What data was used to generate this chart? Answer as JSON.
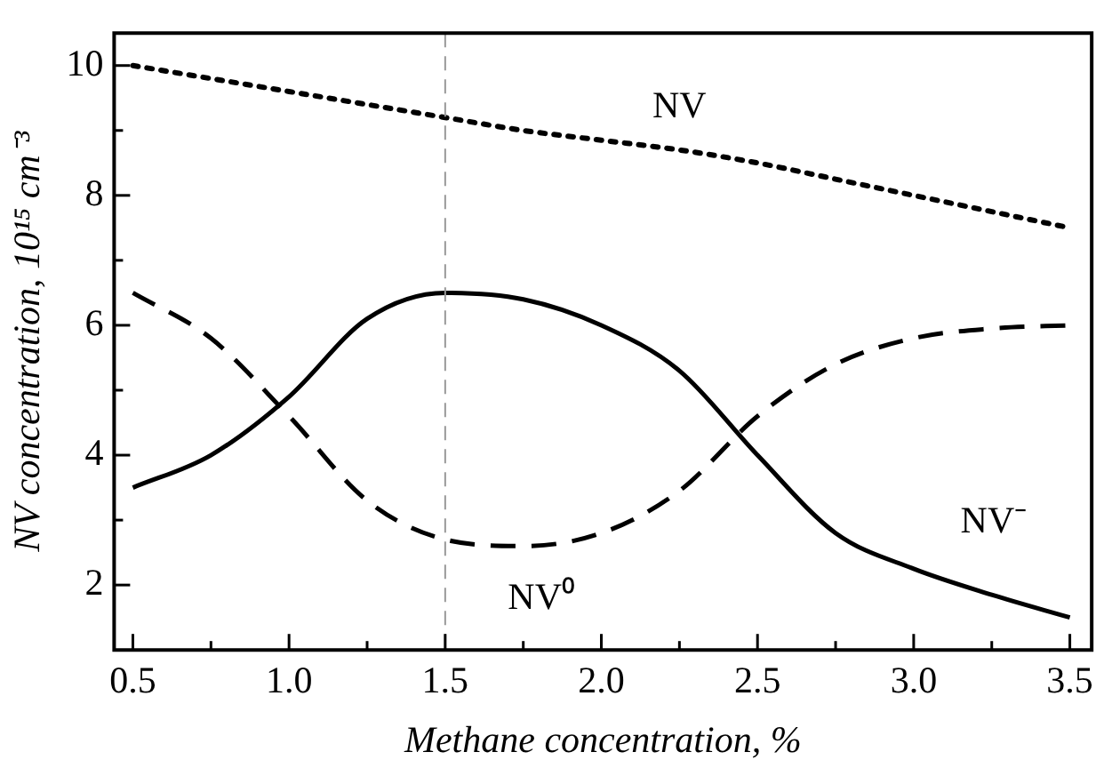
{
  "chart_data": {
    "type": "line",
    "xlabel": "Methane concentration, %",
    "ylabel": "NV concentration, 10¹⁵ cm⁻³",
    "x": [
      0.5,
      0.75,
      1.0,
      1.25,
      1.5,
      1.75,
      2.0,
      2.25,
      2.5,
      2.75,
      3.0,
      3.25,
      3.5
    ],
    "series": [
      {
        "name": "NV",
        "color": "#000000",
        "line_style": "dotted",
        "values": [
          10,
          9.8,
          9.6,
          9.4,
          9.2,
          9.0,
          8.85,
          8.7,
          8.5,
          8.25,
          8.0,
          7.75,
          7.5
        ]
      },
      {
        "name": "NV⁻",
        "color": "#000000",
        "line_style": "solid",
        "values": [
          3.5,
          4.0,
          4.9,
          6.1,
          6.5,
          6.4,
          6.0,
          5.3,
          4.0,
          2.8,
          2.25,
          1.85,
          1.5
        ]
      },
      {
        "name": "NV⁰",
        "color": "#000000",
        "line_style": "dashed",
        "values": [
          6.5,
          5.8,
          4.6,
          3.3,
          2.7,
          2.6,
          2.8,
          3.45,
          4.6,
          5.4,
          5.8,
          5.95,
          6.0
        ]
      }
    ],
    "xlim": [
      0.44,
      3.57
    ],
    "xticks": [
      {
        "value": 0.5,
        "label": "0.5"
      },
      {
        "value": 0.75,
        "label": null
      },
      {
        "value": 1.0,
        "label": "1.0"
      },
      {
        "value": 1.25,
        "label": null
      },
      {
        "value": 1.5,
        "label": "1.5"
      },
      {
        "value": 1.75,
        "label": null
      },
      {
        "value": 2.0,
        "label": "2.0"
      },
      {
        "value": 2.25,
        "label": null
      },
      {
        "value": 2.5,
        "label": "2.5"
      },
      {
        "value": 2.75,
        "label": null
      },
      {
        "value": 3.0,
        "label": "3.0"
      },
      {
        "value": 3.25,
        "label": null
      },
      {
        "value": 3.5,
        "label": "3.5"
      }
    ],
    "ylim": [
      1.0,
      10.5
    ],
    "yticks": [
      2,
      {
        "value": 3,
        "label": null
      },
      4,
      {
        "value": 5,
        "label": null
      },
      6,
      {
        "value": 7,
        "label": null
      },
      8,
      {
        "value": 9,
        "label": null
      },
      10
    ],
    "ref_lines": [
      {
        "axis": "x",
        "value": 1.5,
        "color": "#999999",
        "line_style": "dashed"
      }
    ],
    "marker": "none",
    "grid": false,
    "legend": false
  }
}
